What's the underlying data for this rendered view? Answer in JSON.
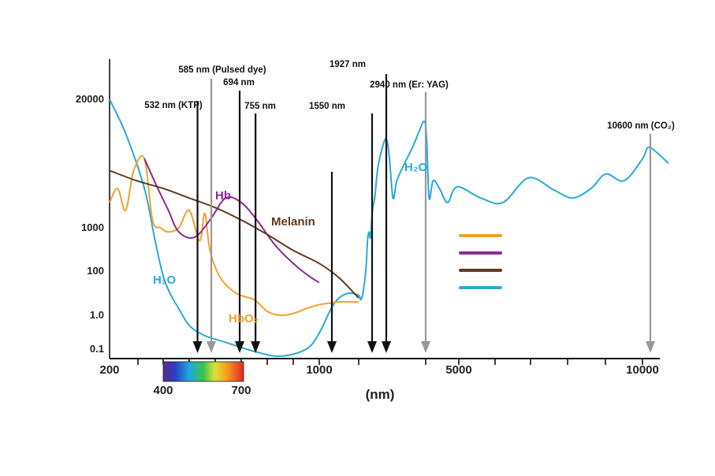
{
  "chart_data": {
    "type": "line",
    "title": "",
    "xlabel": "(nm)",
    "ylabel": "",
    "y_ticks": [
      "20000",
      "1000",
      "100",
      "1.0",
      "0.1"
    ],
    "x_ticks": [
      "200",
      "1000",
      "5000",
      "10000"
    ],
    "spectrum_ticks": [
      "400",
      "700"
    ],
    "spectrum_range": [
      400,
      700
    ],
    "series": [
      {
        "name": "H₂O",
        "label_left": "H₂O",
        "label_right": "H₂O",
        "color": "#29a9d8",
        "points": [
          [
            200,
            20000
          ],
          [
            260,
            9000
          ],
          [
            330,
            2500
          ],
          [
            370,
            500
          ],
          [
            400,
            60
          ],
          [
            430,
            8
          ],
          [
            460,
            2
          ],
          [
            500,
            0.5
          ],
          [
            560,
            0.25
          ],
          [
            650,
            0.15
          ],
          [
            750,
            0.08
          ],
          [
            850,
            0.05
          ],
          [
            950,
            0.1
          ],
          [
            1000,
            0.3
          ],
          [
            1060,
            2
          ],
          [
            1100,
            6
          ],
          [
            1150,
            10
          ],
          [
            1200,
            8
          ],
          [
            1250,
            5
          ],
          [
            1300,
            8
          ],
          [
            1360,
            40
          ],
          [
            1400,
            150
          ],
          [
            1430,
            500
          ],
          [
            1470,
            800
          ],
          [
            1510,
            600
          ],
          [
            1560,
            1500
          ],
          [
            1620,
            2000
          ],
          [
            1700,
            4000
          ],
          [
            1800,
            6000
          ],
          [
            1920,
            8000
          ],
          [
            2000,
            5500
          ],
          [
            2100,
            2000
          ],
          [
            2200,
            3000
          ],
          [
            2400,
            4500
          ],
          [
            2600,
            6500
          ],
          [
            2750,
            9000
          ],
          [
            2900,
            12000
          ],
          [
            3000,
            8000
          ],
          [
            3150,
            2000
          ],
          [
            3400,
            3000
          ],
          [
            3800,
            2500
          ],
          [
            4300,
            1800
          ],
          [
            4900,
            2600
          ],
          [
            5600,
            2000
          ],
          [
            6200,
            1800
          ],
          [
            6900,
            3200
          ],
          [
            7600,
            2400
          ],
          [
            8100,
            2000
          ],
          [
            8600,
            2500
          ],
          [
            9000,
            3500
          ],
          [
            9500,
            3000
          ],
          [
            10000,
            5000
          ],
          [
            10400,
            6500
          ],
          [
            10700,
            6000
          ],
          [
            11000,
            4500
          ]
        ]
      },
      {
        "name": "HbO₂",
        "label": "HbO₂",
        "color": "#f0a22e",
        "points": [
          [
            200,
            1800
          ],
          [
            230,
            2500
          ],
          [
            260,
            1500
          ],
          [
            290,
            3800
          ],
          [
            330,
            5000
          ],
          [
            360,
            1200
          ],
          [
            390,
            1000
          ],
          [
            420,
            800
          ],
          [
            460,
            1000
          ],
          [
            500,
            1500
          ],
          [
            540,
            500
          ],
          [
            560,
            1400
          ],
          [
            580,
            300
          ],
          [
            620,
            50
          ],
          [
            680,
            10
          ],
          [
            750,
            5
          ],
          [
            800,
            1.5
          ],
          [
            850,
            1
          ],
          [
            900,
            1.2
          ],
          [
            950,
            2
          ],
          [
            1000,
            3
          ],
          [
            1050,
            3.5
          ],
          [
            1100,
            4
          ],
          [
            1200,
            4
          ]
        ]
      },
      {
        "name": "Hb",
        "label": "Hb",
        "color": "#8b2b91",
        "points": [
          [
            330,
            5000
          ],
          [
            380,
            2500
          ],
          [
            420,
            1500
          ],
          [
            460,
            800
          ],
          [
            520,
            600
          ],
          [
            580,
            1200
          ],
          [
            640,
            2000
          ],
          [
            700,
            1800
          ],
          [
            760,
            1200
          ],
          [
            830,
            400
          ],
          [
            900,
            150
          ],
          [
            960,
            60
          ],
          [
            1000,
            30
          ]
        ]
      },
      {
        "name": "Melanin",
        "label": "Melanin",
        "color": "#5e3b22",
        "points": [
          [
            200,
            3800
          ],
          [
            300,
            3000
          ],
          [
            400,
            2500
          ],
          [
            500,
            2000
          ],
          [
            600,
            1600
          ],
          [
            700,
            1200
          ],
          [
            800,
            700
          ],
          [
            900,
            300
          ],
          [
            1000,
            150
          ],
          [
            1100,
            50
          ],
          [
            1200,
            6
          ]
        ]
      }
    ],
    "laser_lines": [
      {
        "label": "532 nm (KTP)",
        "x": 532,
        "color": "#111111"
      },
      {
        "label": "585 nm (Pulsed dye)",
        "x": 585,
        "color": "#999999"
      },
      {
        "label": "694 nm",
        "x": 694,
        "color": "#111111"
      },
      {
        "label": "755 nm",
        "x": 755,
        "color": "#111111"
      },
      {
        "label": "",
        "x": 1064,
        "color": "#111111"
      },
      {
        "label": "1550 nm",
        "x": 1550,
        "color": "#111111"
      },
      {
        "label": "1927 nm",
        "x": 1927,
        "color": "#111111"
      },
      {
        "label": "2940 nm (Er: YAG)",
        "x": 2940,
        "color": "#999999"
      },
      {
        "label": "10600 nm (CO₂)",
        "x": 10600,
        "color": "#999999"
      }
    ],
    "legend": {
      "placement": "center-right",
      "colors": [
        "#f0a22e",
        "#8b2b91",
        "#5e3b22",
        "#29a9d8"
      ]
    },
    "grid": false
  }
}
